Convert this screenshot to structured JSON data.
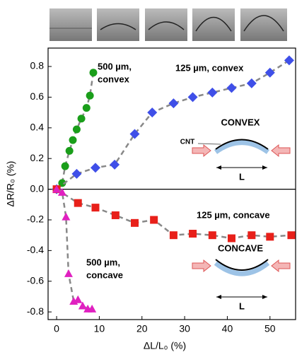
{
  "chart_data": {
    "type": "scatter",
    "x_label": "ΔL/L₀ (%)",
    "y_label": "ΔR/R₀ (%)",
    "xlim": [
      -2,
      56
    ],
    "ylim": [
      -0.85,
      0.92
    ],
    "xticks": [
      0,
      10,
      20,
      30,
      40,
      50
    ],
    "yticks": [
      -0.8,
      -0.6,
      -0.4,
      -0.2,
      {
        "value": 0,
        "label": "0.0"
      },
      0.2,
      0.4,
      0.6,
      0.8
    ],
    "series": [
      {
        "color": "#1a9e1a",
        "marker": "circle",
        "x": [
          0,
          1.3,
          2,
          3,
          3.8,
          4.7,
          5.8,
          7,
          7.8,
          8.6
        ],
        "values": [
          0,
          0.04,
          0.15,
          0.25,
          0.32,
          0.39,
          0.46,
          0.53,
          0.61,
          0.76
        ]
      },
      {
        "color": "#3f4fe8",
        "marker": "diamond",
        "x": [
          0,
          4.7,
          9.1,
          13.6,
          18.3,
          22.4,
          27.4,
          31.9,
          36.5,
          41,
          45.7,
          50,
          54.5
        ],
        "values": [
          0,
          0.1,
          0.14,
          0.16,
          0.36,
          0.5,
          0.56,
          0.6,
          0.63,
          0.66,
          0.69,
          0.76,
          0.84
        ]
      },
      {
        "color": "#e8201a",
        "marker": "square",
        "x": [
          0,
          5,
          9.1,
          13.8,
          18.3,
          22.8,
          27.4,
          31.9,
          36.5,
          41,
          45.7,
          50,
          55
        ],
        "values": [
          0,
          -0.09,
          -0.12,
          -0.17,
          -0.22,
          -0.2,
          -0.3,
          -0.29,
          -0.3,
          -0.32,
          -0.3,
          -0.31,
          -0.3
        ]
      },
      {
        "color": "#e020c0",
        "marker": "triangle",
        "x": [
          0,
          1.3,
          2.2,
          2.8,
          4,
          5,
          6.1,
          7.3,
          8.3
        ],
        "values": [
          0,
          -0.02,
          -0.18,
          -0.55,
          -0.73,
          -0.72,
          -0.76,
          -0.78,
          -0.78
        ]
      }
    ],
    "annotations": [
      "500 µm,",
      "convex",
      "125 µm, convex",
      "125 µm, concave",
      "500 µm,",
      "concave"
    ],
    "insets": {
      "convex": {
        "title": "CONVEX",
        "material": "CNT",
        "length": "L"
      },
      "concave": {
        "title": "CONCAVE",
        "length": "L"
      }
    }
  }
}
